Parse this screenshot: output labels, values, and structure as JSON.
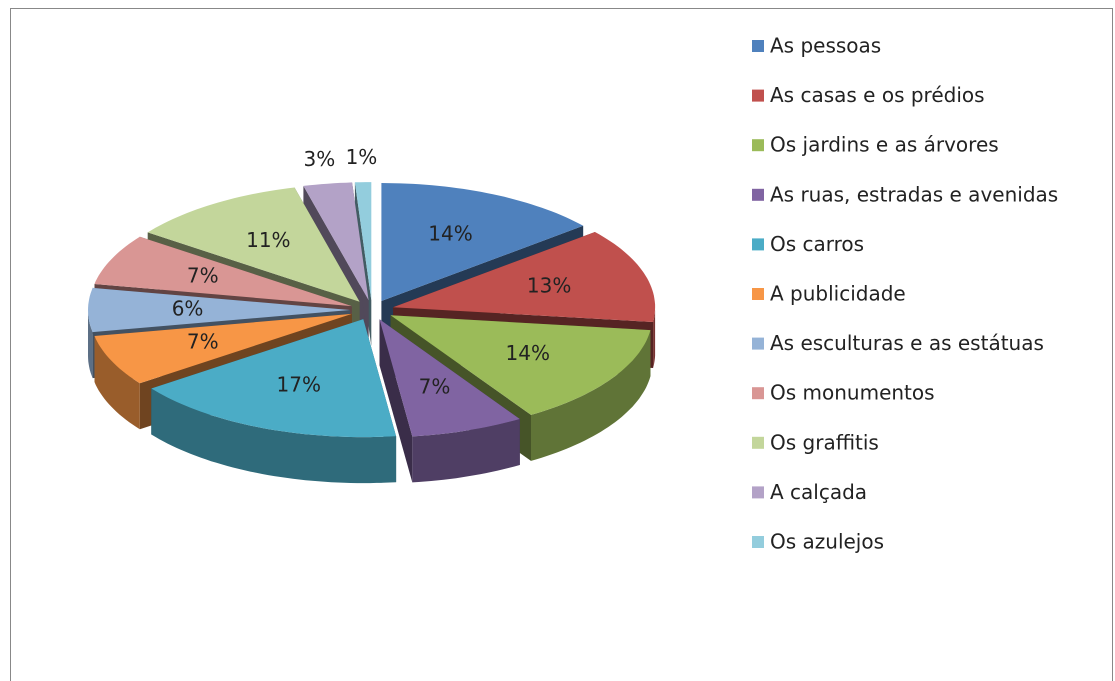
{
  "chart_data": {
    "type": "pie3d",
    "categories": [
      "As pessoas",
      "As casas e os prédios",
      "Os jardins e as árvores",
      "As ruas, estradas e avenidas",
      "Os carros",
      "A publicidade",
      "As esculturas e as estátuas",
      "Os monumentos",
      "Os graffitis",
      "A calçada",
      "Os azulejos"
    ],
    "values": [
      14,
      13,
      14,
      7,
      17,
      7,
      6,
      7,
      11,
      3,
      1
    ],
    "value_labels": [
      "14%",
      "13%",
      "14%",
      "7%",
      "17%",
      "7%",
      "6%",
      "7%",
      "11%",
      "3%",
      "1%"
    ],
    "colors": [
      "#4f81bd",
      "#c0504d",
      "#9bbb59",
      "#8064a2",
      "#4bacc6",
      "#f79646",
      "#95b3d7",
      "#d99694",
      "#c3d69b",
      "#b3a2c7",
      "#93cddd"
    ],
    "legend": "right"
  }
}
